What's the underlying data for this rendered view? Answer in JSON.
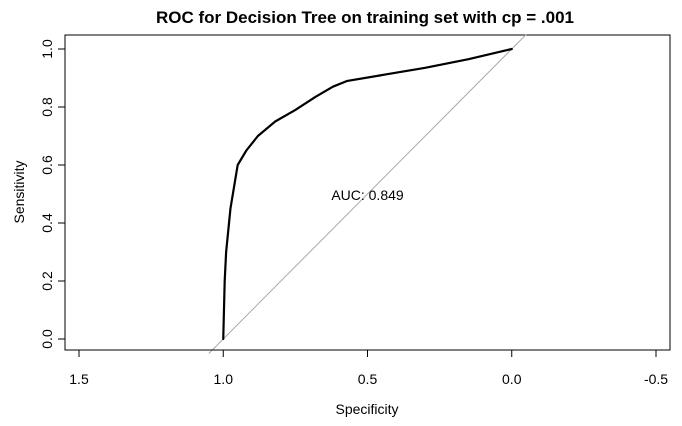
{
  "chart_data": {
    "type": "line",
    "title": "ROC for Decision Tree on training set with cp = .001",
    "xlabel": "Specificity",
    "ylabel": "Sensitivity",
    "x_reversed": true,
    "xlim": [
      1.5,
      -0.5
    ],
    "ylim": [
      0.0,
      1.0
    ],
    "xticks": [
      1.5,
      1.0,
      0.5,
      0.0,
      -0.5
    ],
    "xtick_labels": [
      "1.5",
      "1.0",
      "0.5",
      "0.0",
      "-0.5"
    ],
    "yticks": [
      0.0,
      0.2,
      0.4,
      0.6,
      0.8,
      1.0
    ],
    "ytick_labels": [
      "0.0",
      "0.2",
      "0.4",
      "0.6",
      "0.8",
      "1.0"
    ],
    "grid": false,
    "series": [
      {
        "color": "#000000",
        "points": [
          {
            "specificity": 1.0,
            "sensitivity": 0.0
          },
          {
            "specificity": 0.995,
            "sensitivity": 0.2
          },
          {
            "specificity": 0.99,
            "sensitivity": 0.3
          },
          {
            "specificity": 0.975,
            "sensitivity": 0.45
          },
          {
            "specificity": 0.96,
            "sensitivity": 0.54
          },
          {
            "specificity": 0.95,
            "sensitivity": 0.6
          },
          {
            "specificity": 0.92,
            "sensitivity": 0.65
          },
          {
            "specificity": 0.88,
            "sensitivity": 0.7
          },
          {
            "specificity": 0.82,
            "sensitivity": 0.75
          },
          {
            "specificity": 0.75,
            "sensitivity": 0.79
          },
          {
            "specificity": 0.68,
            "sensitivity": 0.835
          },
          {
            "specificity": 0.62,
            "sensitivity": 0.87
          },
          {
            "specificity": 0.57,
            "sensitivity": 0.89
          },
          {
            "specificity": 0.45,
            "sensitivity": 0.91
          },
          {
            "specificity": 0.3,
            "sensitivity": 0.935
          },
          {
            "specificity": 0.15,
            "sensitivity": 0.965
          },
          {
            "specificity": 0.0,
            "sensitivity": 1.0
          }
        ]
      }
    ],
    "reference_line": {
      "from": [
        1.0,
        0.0
      ],
      "to": [
        0.0,
        1.0
      ],
      "color": "#a9a9a9"
    },
    "annotations": [
      {
        "text": "AUC: 0.849",
        "x": 0.5,
        "y": 0.48
      }
    ]
  }
}
